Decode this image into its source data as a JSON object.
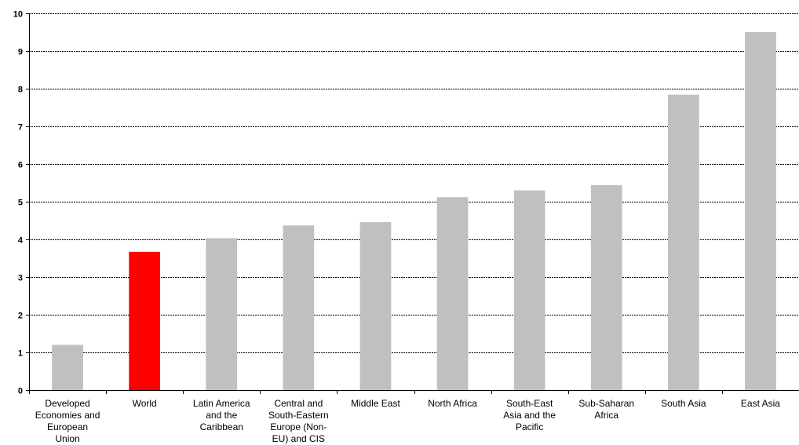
{
  "chart_data": {
    "type": "bar",
    "title": "",
    "xlabel": "",
    "ylabel": "",
    "ylim": [
      0,
      10
    ],
    "yticks": [
      0,
      1,
      2,
      3,
      4,
      5,
      6,
      7,
      8,
      9,
      10
    ],
    "grid": "horizontal dashed",
    "legend": "none",
    "categories": [
      "Developed Economies and European Union",
      "World",
      "Latin America and the Caribbean",
      "Central and South-Eastern Europe (Non-EU) and CIS",
      "Middle East",
      "North Africa",
      "South-East Asia and the Pacific",
      "Sub-Saharan Africa",
      "South Asia",
      "East Asia"
    ],
    "category_lines": [
      [
        "Developed",
        "Economies and",
        "European",
        "Union"
      ],
      [
        "World"
      ],
      [
        "Latin America",
        "and the",
        "Caribbean"
      ],
      [
        "Central and",
        "South-Eastern",
        "Europe (Non-",
        "EU) and CIS"
      ],
      [
        "Middle East"
      ],
      [
        "North Africa"
      ],
      [
        "South-East",
        "Asia and the",
        "Pacific"
      ],
      [
        "Sub-Saharan",
        "Africa"
      ],
      [
        "South Asia"
      ],
      [
        "East Asia"
      ]
    ],
    "values": [
      1.2,
      3.67,
      4.03,
      4.37,
      4.46,
      5.12,
      5.3,
      5.44,
      7.84,
      9.5
    ],
    "colors": [
      "#c0c0c0",
      "#ff0000",
      "#c0c0c0",
      "#c0c0c0",
      "#c0c0c0",
      "#c0c0c0",
      "#c0c0c0",
      "#c0c0c0",
      "#c0c0c0",
      "#c0c0c0"
    ]
  }
}
